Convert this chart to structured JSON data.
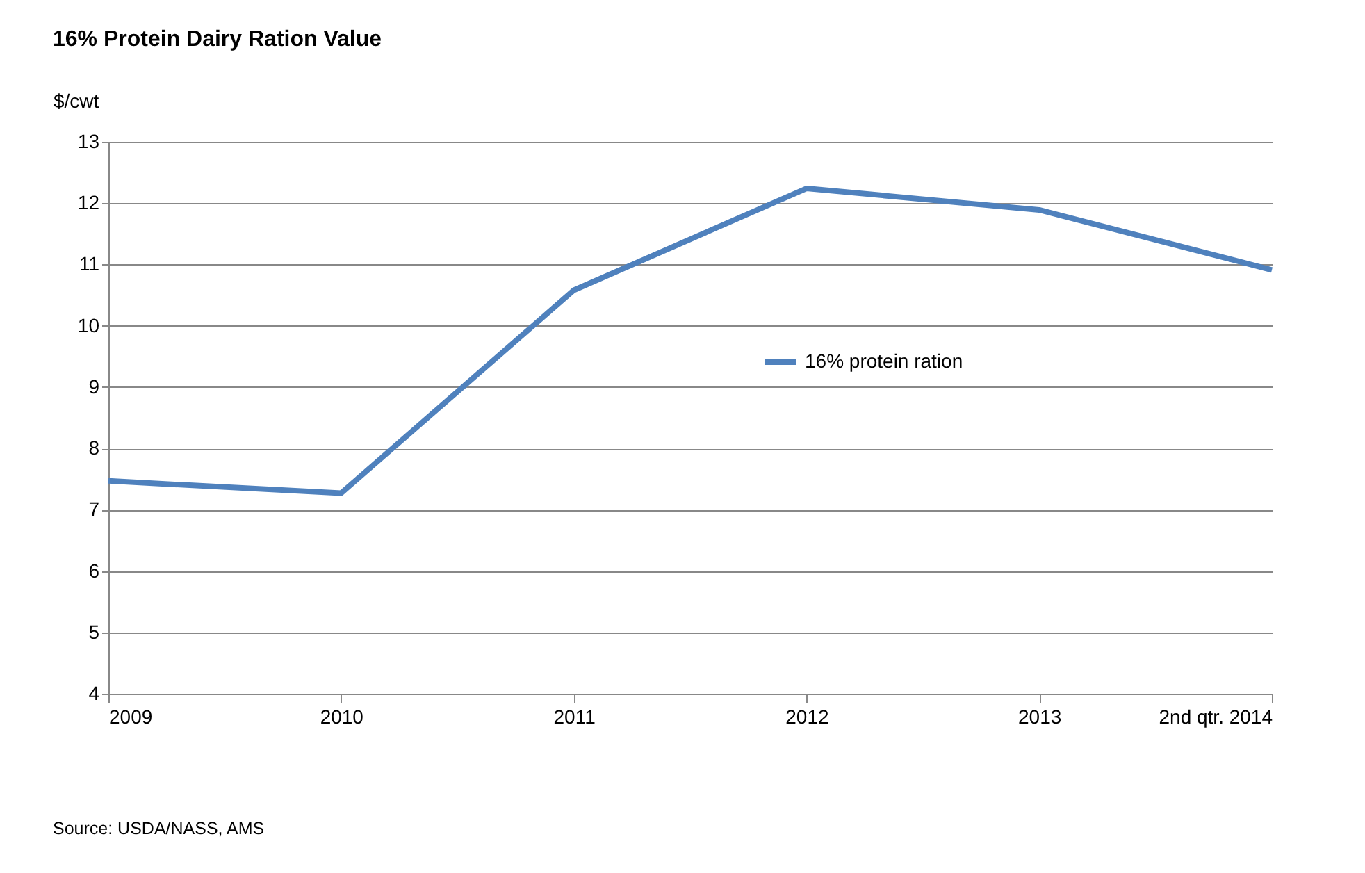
{
  "chart_data": {
    "type": "line",
    "title": "16% Protein Dairy Ration Value",
    "ylabel": "$/cwt",
    "categories": [
      "2009",
      "2010",
      "2011",
      "2012",
      "2013",
      "2nd qtr. 2014"
    ],
    "series": [
      {
        "name": "16% protein ration",
        "color": "#4f81bd",
        "values": [
          7.47,
          7.27,
          10.58,
          12.24,
          11.89,
          10.91
        ]
      }
    ],
    "ylim": [
      4,
      13
    ],
    "yticks": [
      4,
      5,
      6,
      7,
      8,
      9,
      10,
      11,
      12,
      13
    ],
    "grid": "y",
    "legend": "center",
    "marker": "none",
    "annotations": [
      "Source: USDA/NASS, AMS"
    ]
  }
}
